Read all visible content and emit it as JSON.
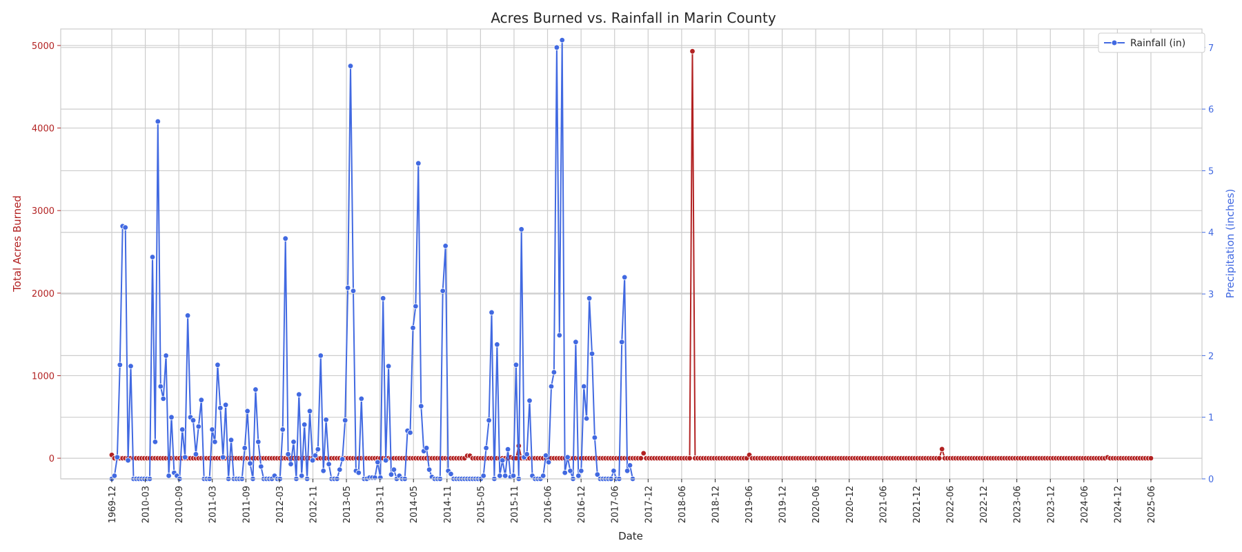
{
  "chart_data": {
    "type": "line",
    "title": "Acres Burned vs. Rainfall in Marin County",
    "xlabel": "Date",
    "ylabel_left": "Total Acres Burned",
    "ylabel_right": "Precipitation (inches)",
    "ylim_left": [
      -250,
      5200
    ],
    "ylim_right": [
      0,
      7.3
    ],
    "yticks_left": [
      "0",
      "1000",
      "2000",
      "3000",
      "4000",
      "5000"
    ],
    "yticks_right": [
      "0",
      "1",
      "2",
      "3",
      "4",
      "5",
      "6",
      "7"
    ],
    "x_tick_labels": [
      "1969-12",
      "2010-03",
      "2010-09",
      "2011-03",
      "2011-09",
      "2012-03",
      "2012-11",
      "2013-05",
      "2013-11",
      "2014-05",
      "2014-11",
      "2015-05",
      "2015-11",
      "2016-06",
      "2016-12",
      "2017-06",
      "2017-12",
      "2018-06",
      "2018-12",
      "2019-06",
      "2019-12",
      "2020-06",
      "2020-12",
      "2021-06",
      "2021-12",
      "2022-06",
      "2022-12",
      "2023-06",
      "2023-12",
      "2024-06",
      "2024-12",
      "2025-06"
    ],
    "grid": true,
    "legend_position": "top-right",
    "colors": {
      "acres": "#b22222",
      "rain": "#4169e1"
    },
    "series": [
      {
        "name": "Acres Burned",
        "axis": "left",
        "values": [
          40,
          0,
          0,
          0,
          0,
          0,
          0,
          0,
          0,
          0,
          0,
          0,
          0,
          0,
          0,
          0,
          0,
          0,
          0,
          0,
          0,
          0,
          0,
          0,
          0,
          0,
          0,
          0,
          0,
          0,
          0,
          0,
          0,
          0,
          0,
          0,
          0,
          0,
          0,
          0,
          0,
          0,
          0,
          0,
          0,
          0,
          0,
          0,
          0,
          0,
          0,
          0,
          0,
          0,
          0,
          0,
          0,
          0,
          0,
          0,
          0,
          0,
          0,
          0,
          0,
          0,
          0,
          0,
          0,
          0,
          0,
          0,
          0,
          0,
          0,
          0,
          0,
          0,
          0,
          0,
          0,
          0,
          0,
          0,
          0,
          0,
          0,
          0,
          0,
          0,
          0,
          0,
          0,
          0,
          0,
          0,
          0,
          0,
          0,
          0,
          0,
          0,
          0,
          0,
          0,
          0,
          0,
          0,
          0,
          0,
          0,
          0,
          0,
          0,
          0,
          0,
          0,
          0,
          0,
          0,
          0,
          0,
          0,
          0,
          0,
          0,
          0,
          0,
          0,
          0,
          0,
          30,
          30,
          0,
          0,
          0,
          0,
          0,
          0,
          0,
          0,
          0,
          0,
          0,
          0,
          0,
          0,
          10,
          0,
          0,
          150,
          0,
          0,
          0,
          0,
          0,
          0,
          0,
          0,
          0,
          0,
          0,
          0,
          0,
          0,
          0,
          0,
          0,
          0,
          0,
          0,
          0,
          0,
          0,
          0,
          0,
          0,
          0,
          0,
          0,
          0,
          0,
          0,
          0,
          0,
          0,
          0,
          0,
          0,
          0,
          0,
          0,
          0,
          0,
          0,
          0,
          60,
          0,
          0,
          0,
          0,
          0,
          0,
          0,
          0,
          0,
          0,
          0,
          0,
          0,
          0,
          0,
          0,
          0,
          4930,
          0,
          0,
          0,
          0,
          0,
          0,
          0,
          0,
          0,
          0,
          0,
          0,
          0,
          0,
          0,
          0,
          0,
          0,
          0,
          0,
          40,
          0,
          0,
          0,
          0,
          0,
          0,
          0,
          0,
          0,
          0,
          0,
          0,
          0,
          0,
          0,
          0,
          0,
          0,
          0,
          0,
          0,
          0,
          0,
          0,
          0,
          0,
          0,
          0,
          0,
          0,
          0,
          0,
          0,
          0,
          0,
          0,
          0,
          0,
          0,
          0,
          0,
          0,
          0,
          0,
          0,
          0,
          0,
          0,
          0,
          0,
          0,
          0,
          0,
          0,
          0,
          0,
          0,
          0,
          0,
          0,
          0,
          0,
          0,
          0,
          0,
          0,
          0,
          0,
          0,
          0,
          110,
          0,
          0,
          0,
          0,
          0,
          0,
          0,
          0,
          0,
          0,
          0,
          0,
          0,
          0,
          0,
          0,
          0,
          0,
          0,
          0,
          0,
          0,
          0,
          0,
          0,
          0,
          0,
          0,
          0,
          0,
          0,
          0,
          0,
          0,
          0,
          0,
          0,
          0,
          0,
          0,
          0,
          0,
          0,
          0,
          0,
          0,
          0,
          0,
          0,
          0,
          0,
          0,
          0,
          0,
          0,
          0,
          0,
          0,
          0,
          0,
          10,
          0,
          0,
          0,
          0,
          0,
          0,
          0,
          0,
          0,
          0,
          0,
          0,
          0,
          0,
          0,
          0
        ]
      },
      {
        "name": "Rainfall (in)",
        "axis": "right",
        "values": [
          0,
          0.05,
          0.35,
          1.85,
          4.1,
          4.08,
          0.3,
          1.83,
          0,
          0,
          0,
          0,
          0,
          0,
          0,
          3.6,
          0.6,
          5.8,
          1.5,
          1.3,
          2.0,
          0.05,
          1.0,
          0.1,
          0.05,
          0,
          0.8,
          0.35,
          2.65,
          1.0,
          0.95,
          0.4,
          0.85,
          1.28,
          0,
          0,
          0,
          0.8,
          0.6,
          1.85,
          1.15,
          0.35,
          1.2,
          0,
          0.63,
          0,
          0,
          0,
          0,
          0.5,
          1.1,
          0.25,
          0,
          1.45,
          0.6,
          0.2,
          0,
          0,
          0,
          0,
          0.05,
          0,
          0,
          0.8,
          3.9,
          0.4,
          0.24,
          0.6,
          0,
          1.37,
          0.05,
          0.88,
          0,
          1.1,
          0.3,
          0.38,
          0.48,
          2.0,
          0.13,
          0.96,
          0.24,
          0,
          0,
          0,
          0.15,
          0.32,
          0.95,
          3.1,
          6.7,
          3.05,
          0.13,
          0.1,
          1.3,
          0,
          0,
          0.02,
          0.02,
          0.02,
          0.27,
          0.02,
          2.93,
          0.3,
          1.83,
          0.07,
          0.15,
          0,
          0.05,
          0,
          0,
          0.78,
          0.75,
          2.45,
          2.8,
          5.12,
          1.18,
          0.45,
          0.5,
          0.15,
          0.03,
          0,
          0,
          0,
          3.05,
          3.78,
          0.13,
          0.08,
          0,
          0,
          0,
          0,
          0,
          0,
          0,
          0,
          0,
          0,
          0,
          0.05,
          0.5,
          0.95,
          2.7,
          0,
          2.18,
          0.05,
          0.3,
          0.05,
          0.48,
          0.03,
          0.05,
          1.85,
          0,
          4.05,
          0.35,
          0.4,
          1.27,
          0.05,
          0,
          0,
          0,
          0.05,
          0.38,
          0.27,
          1.5,
          1.73,
          7.0,
          2.33,
          7.12,
          0.1,
          0.35,
          0.13,
          0,
          2.22,
          0.05,
          0.13,
          1.5,
          0.98,
          2.93,
          2.03,
          0.67,
          0.07,
          0,
          0,
          0,
          0,
          0,
          0.13,
          0,
          0,
          2.22,
          3.27,
          0.13,
          0.22,
          0
        ]
      }
    ]
  }
}
